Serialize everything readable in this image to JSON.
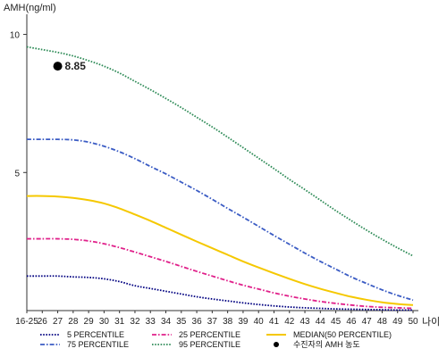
{
  "chart_data": {
    "type": "line",
    "ylabel": "AMH(ng/ml)",
    "xlabel": "나이",
    "ylim": [
      0,
      10.6
    ],
    "y_ticks": [
      5,
      10
    ],
    "categories": [
      "16-25",
      "26",
      "27",
      "28",
      "29",
      "30",
      "31",
      "32",
      "33",
      "34",
      "35",
      "36",
      "37",
      "38",
      "39",
      "40",
      "41",
      "42",
      "43",
      "44",
      "45",
      "46",
      "47",
      "48",
      "49",
      "50"
    ],
    "series": [
      {
        "name": "5 PERCENTILE",
        "color": "#000080",
        "style": "dotted",
        "values": [
          1.25,
          1.25,
          1.25,
          1.22,
          1.2,
          1.15,
          1.05,
          0.9,
          0.8,
          0.7,
          0.6,
          0.5,
          0.42,
          0.35,
          0.28,
          0.22,
          0.17,
          0.13,
          0.1,
          0.08,
          0.06,
          0.05,
          0.04,
          0.03,
          0.02,
          0.02
        ]
      },
      {
        "name": "25 PERCENTILE",
        "color": "#E0208A",
        "style": "dashdot",
        "values": [
          2.6,
          2.6,
          2.6,
          2.58,
          2.52,
          2.42,
          2.28,
          2.12,
          1.95,
          1.78,
          1.6,
          1.42,
          1.25,
          1.08,
          0.92,
          0.78,
          0.64,
          0.52,
          0.42,
          0.33,
          0.26,
          0.2,
          0.15,
          0.12,
          0.1,
          0.08
        ]
      },
      {
        "name": "MEDIAN(50 PERCENTILE)",
        "color": "#F5C800",
        "style": "solid",
        "values": [
          4.15,
          4.15,
          4.13,
          4.08,
          4.0,
          3.88,
          3.7,
          3.48,
          3.25,
          3.0,
          2.75,
          2.5,
          2.26,
          2.02,
          1.78,
          1.56,
          1.35,
          1.15,
          0.96,
          0.79,
          0.64,
          0.5,
          0.39,
          0.3,
          0.24,
          0.2
        ]
      },
      {
        "name": "75 PERCENTILE",
        "color": "#3B5CC4",
        "style": "dashdot",
        "values": [
          6.2,
          6.2,
          6.2,
          6.18,
          6.1,
          5.95,
          5.75,
          5.5,
          5.22,
          4.95,
          4.65,
          4.35,
          4.03,
          3.7,
          3.38,
          3.05,
          2.72,
          2.4,
          2.08,
          1.78,
          1.5,
          1.22,
          0.98,
          0.75,
          0.55,
          0.38
        ]
      },
      {
        "name": "95 PERCENTILE",
        "color": "#2E8B57",
        "style": "dotted",
        "values": [
          9.55,
          9.45,
          9.35,
          9.22,
          9.05,
          8.85,
          8.6,
          8.3,
          8.0,
          7.68,
          7.35,
          7.0,
          6.65,
          6.28,
          5.9,
          5.52,
          5.14,
          4.75,
          4.38,
          4.0,
          3.62,
          3.26,
          2.91,
          2.58,
          2.27,
          1.98
        ]
      }
    ],
    "marker": {
      "name": "수진자의 AMH 농도",
      "x": "27",
      "y": 8.85,
      "label": "8.85",
      "color": "#000000"
    },
    "legend_position": "bottom"
  }
}
